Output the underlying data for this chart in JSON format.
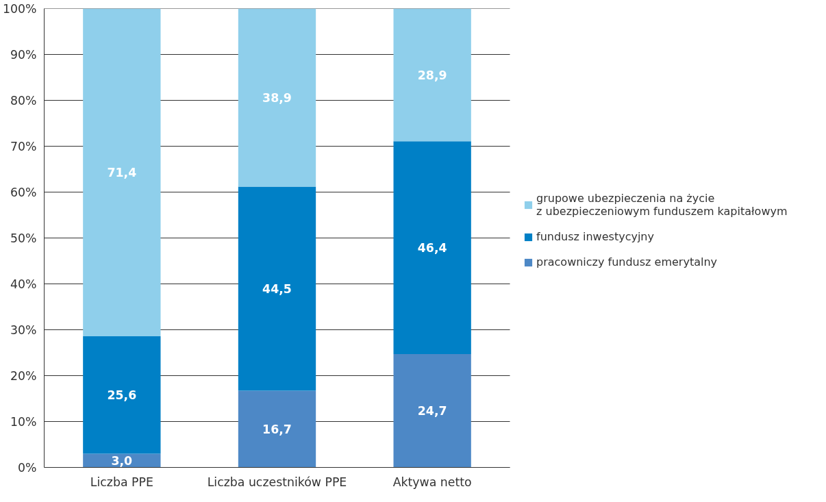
{
  "chart_data": {
    "type": "bar",
    "stacked": true,
    "categories": [
      "Liczba PPE",
      "Liczba uczestników PPE",
      "Aktywa netto"
    ],
    "series": [
      {
        "name": "pracowniczy fundusz emerytalny",
        "color": "#4d88c6",
        "values": [
          3.0,
          16.7,
          24.7
        ],
        "value_labels": [
          "3,0",
          "16,7",
          "24,7"
        ]
      },
      {
        "name": "fundusz inwestycyjny",
        "color": "#0080c6",
        "values": [
          25.6,
          44.5,
          46.4
        ],
        "value_labels": [
          "25,6",
          "44,5",
          "46,4"
        ]
      },
      {
        "name": "grupowe ubezpieczenia na życie\nz ubezpieczeniowym funduszem kapitałowym",
        "color": "#8fcfeb",
        "values": [
          71.4,
          38.9,
          28.9
        ],
        "value_labels": [
          "71,4",
          "38,9",
          "28,9"
        ]
      }
    ],
    "ylim": [
      0,
      100
    ],
    "yticks": [
      {
        "value": 0,
        "label": "0%"
      },
      {
        "value": 10,
        "label": "10%"
      },
      {
        "value": 20,
        "label": "20%"
      },
      {
        "value": 30,
        "label": "30%"
      },
      {
        "value": 40,
        "label": "40%"
      },
      {
        "value": 50,
        "label": "50%"
      },
      {
        "value": 60,
        "label": "60%"
      },
      {
        "value": 70,
        "label": "70%"
      },
      {
        "value": 80,
        "label": "80%"
      },
      {
        "value": 90,
        "label": "90%"
      },
      {
        "value": 100,
        "label": "100%"
      }
    ],
    "grid": "y",
    "legend": "right"
  }
}
